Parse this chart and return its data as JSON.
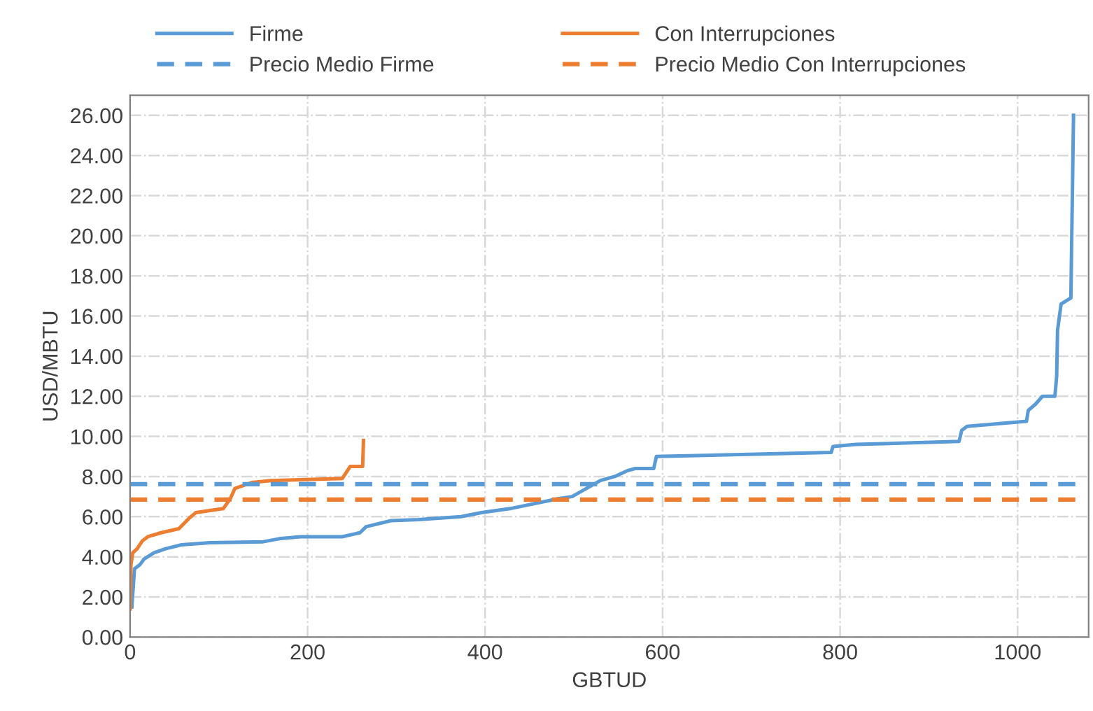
{
  "chart_data": {
    "type": "line",
    "xlabel": "GBTUD",
    "ylabel": "USD/MBTU",
    "xlim": [
      0,
      1080
    ],
    "xticks": [
      0,
      200,
      400,
      600,
      800,
      1000
    ],
    "ylim": [
      0,
      27
    ],
    "yticks": [
      {
        "value": 0,
        "label": "0.00"
      },
      {
        "value": 2,
        "label": "2.00"
      },
      {
        "value": 4,
        "label": "4.00"
      },
      {
        "value": 6,
        "label": "6.00"
      },
      {
        "value": 8,
        "label": "8.00"
      },
      {
        "value": 10,
        "label": "10.00"
      },
      {
        "value": 12,
        "label": "12.00"
      },
      {
        "value": 14,
        "label": "14.00"
      },
      {
        "value": 16,
        "label": "16.00"
      },
      {
        "value": 18,
        "label": "18.00"
      },
      {
        "value": 20,
        "label": "20.00"
      },
      {
        "value": 22,
        "label": "22.00"
      },
      {
        "value": 24,
        "label": "24.00"
      },
      {
        "value": 26,
        "label": "26.00"
      }
    ],
    "grid": true,
    "legend": "top",
    "marker": "none",
    "series": [
      {
        "name": "Firme",
        "color": "#5b9bd5",
        "line_style": "solid",
        "x": [
          2,
          5,
          11,
          16,
          27,
          40,
          58,
          90,
          150,
          168,
          192,
          239,
          259,
          266,
          294,
          325,
          373,
          396,
          428,
          450,
          483,
          498,
          514,
          530,
          546,
          561,
          569,
          590,
          593,
          790,
          792,
          818,
          934,
          937,
          943,
          1010,
          1012,
          1020,
          1028,
          1042,
          1044,
          1045,
          1049,
          1060,
          1061,
          1063
        ],
        "values": [
          1.5,
          3.4,
          3.6,
          3.9,
          4.2,
          4.4,
          4.6,
          4.7,
          4.75,
          4.9,
          5.0,
          5.0,
          5.2,
          5.5,
          5.8,
          5.85,
          6.0,
          6.2,
          6.4,
          6.6,
          6.9,
          7.0,
          7.4,
          7.8,
          8.0,
          8.3,
          8.4,
          8.4,
          9.0,
          9.2,
          9.5,
          9.6,
          9.75,
          10.3,
          10.5,
          10.75,
          11.3,
          11.6,
          12.0,
          12.0,
          13.0,
          15.3,
          16.6,
          16.9,
          20.0,
          26.0
        ]
      },
      {
        "name": "Con Interrupciones",
        "color": "#ed7d31",
        "line_style": "solid",
        "x": [
          0,
          1,
          3,
          8,
          14,
          20,
          35,
          55,
          66,
          74,
          105,
          113,
          118,
          124,
          137,
          159,
          239,
          248,
          262,
          263
        ],
        "values": [
          1.4,
          3.6,
          4.2,
          4.4,
          4.8,
          5.0,
          5.2,
          5.4,
          5.9,
          6.2,
          6.4,
          6.9,
          7.4,
          7.5,
          7.7,
          7.8,
          7.9,
          8.5,
          8.5,
          9.8
        ]
      },
      {
        "name": "Precio Medio Firme",
        "color": "#5b9bd5",
        "line_style": "dashed",
        "x": [
          0,
          1065
        ],
        "values": [
          7.62,
          7.62
        ]
      },
      {
        "name": "Precio Medio Con Interrupciones",
        "color": "#ed7d31",
        "line_style": "dashed",
        "x": [
          0,
          1065
        ],
        "values": [
          6.85,
          6.85
        ]
      }
    ]
  }
}
